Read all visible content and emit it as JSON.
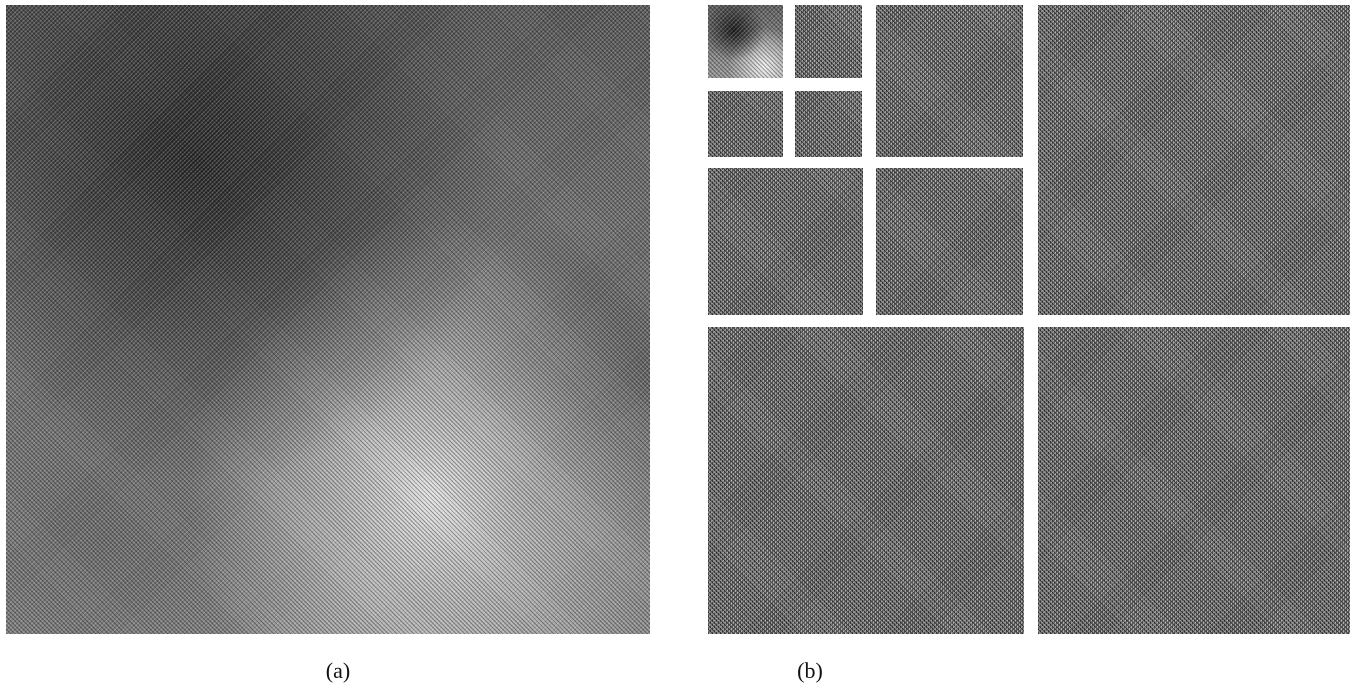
{
  "figure": {
    "panel_a": {
      "caption": "(a)"
    },
    "panel_b": {
      "caption": "(b)"
    }
  }
}
